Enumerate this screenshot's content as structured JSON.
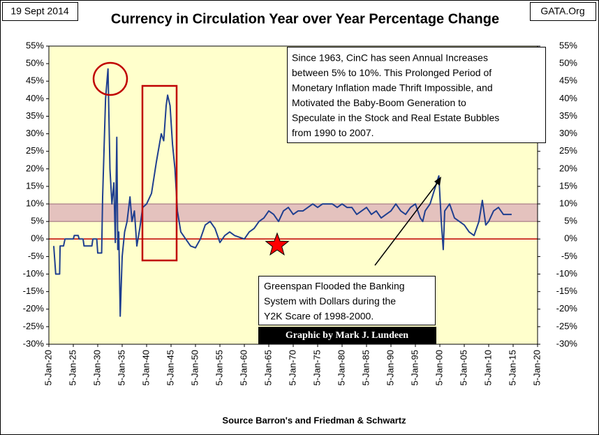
{
  "chart_data": {
    "type": "line",
    "title": "Currency in Circulation  Year over Year Percentage Change",
    "date_label": "19 Sept 2014",
    "site_label": "GATA.Org",
    "source": "Source Barron's and Friedman & Schwartz",
    "credit": "Graphic by Mark J. Lundeen",
    "annotations": [
      {
        "lines": [
          "Since 1963, CinC has seen Annual Increases",
          "between 5% to 10%.  This Prolonged Period of",
          "Monetary Inflation made Thrift Impossible, and",
          "Motivated the Baby-Boom Generation to",
          "Speculate in the Stock and Real Estate Bubbles",
          "from 1990 to 2007."
        ]
      },
      {
        "lines": [
          "Greenspan Flooded the Banking",
          "System with Dollars during the",
          "Y2K Scare of 1998-2000."
        ]
      }
    ],
    "xlim": [
      1920,
      2020
    ],
    "xticks": [
      {
        "value": 1920,
        "label": "5-Jan-20"
      },
      {
        "value": 1925,
        "label": "5-Jan-25"
      },
      {
        "value": 1930,
        "label": "5-Jan-30"
      },
      {
        "value": 1935,
        "label": "5-Jan-35"
      },
      {
        "value": 1940,
        "label": "5-Jan-40"
      },
      {
        "value": 1945,
        "label": "5-Jan-45"
      },
      {
        "value": 1950,
        "label": "5-Jan-50"
      },
      {
        "value": 1955,
        "label": "5-Jan-55"
      },
      {
        "value": 1960,
        "label": "5-Jan-60"
      },
      {
        "value": 1965,
        "label": "5-Jan-65"
      },
      {
        "value": 1970,
        "label": "5-Jan-70"
      },
      {
        "value": 1975,
        "label": "5-Jan-75"
      },
      {
        "value": 1980,
        "label": "5-Jan-80"
      },
      {
        "value": 1985,
        "label": "5-Jan-85"
      },
      {
        "value": 1990,
        "label": "5-Jan-90"
      },
      {
        "value": 1995,
        "label": "5-Jan-95"
      },
      {
        "value": 2000,
        "label": "5-Jan-00"
      },
      {
        "value": 2005,
        "label": "5-Jan-05"
      },
      {
        "value": 2010,
        "label": "5-Jan-10"
      },
      {
        "value": 2015,
        "label": "5-Jan-15"
      },
      {
        "value": 2020,
        "label": "5-Jan-20"
      }
    ],
    "ylim": [
      -30,
      55
    ],
    "yticks": [
      {
        "value": 55,
        "label": "55%"
      },
      {
        "value": 50,
        "label": "50%"
      },
      {
        "value": 45,
        "label": "45%"
      },
      {
        "value": 40,
        "label": "40%"
      },
      {
        "value": 35,
        "label": "35%"
      },
      {
        "value": 30,
        "label": "30%"
      },
      {
        "value": 25,
        "label": "25%"
      },
      {
        "value": 20,
        "label": "20%"
      },
      {
        "value": 15,
        "label": "15%"
      },
      {
        "value": 10,
        "label": "10%"
      },
      {
        "value": 5,
        "label": "5%"
      },
      {
        "value": 0,
        "label": "0%"
      },
      {
        "value": -5,
        "label": "-5%"
      },
      {
        "value": -10,
        "label": "-10%"
      },
      {
        "value": -15,
        "label": "-15%"
      },
      {
        "value": -20,
        "label": "-20%"
      },
      {
        "value": -25,
        "label": "-25%"
      },
      {
        "value": -30,
        "label": "-30%"
      }
    ],
    "y2lim": [
      -30,
      55
    ],
    "y2ticks": [
      {
        "value": 55,
        "label": "55%"
      },
      {
        "value": 50,
        "label": "50%"
      },
      {
        "value": 45,
        "label": "45%"
      },
      {
        "value": 40,
        "label": "40%"
      },
      {
        "value": 35,
        "label": "35%"
      },
      {
        "value": 30,
        "label": "30%"
      },
      {
        "value": 25,
        "label": "25%"
      },
      {
        "value": 20,
        "label": "20%"
      },
      {
        "value": 15,
        "label": "15%"
      },
      {
        "value": 10,
        "label": "10%"
      },
      {
        "value": 5,
        "label": "5%"
      },
      {
        "value": 0,
        "label": "0%"
      },
      {
        "value": -5,
        "label": "-5%"
      },
      {
        "value": -10,
        "label": "-10%"
      },
      {
        "value": -15,
        "label": "-15%"
      },
      {
        "value": -20,
        "label": "-20%"
      },
      {
        "value": -25,
        "label": "-25%"
      },
      {
        "value": -30,
        "label": "-30%"
      }
    ],
    "band": [
      5,
      10
    ],
    "band_color": "#d9a8b8",
    "reference_line": 0,
    "reference_color": "#c00000",
    "background": "#ffffcc",
    "grid": false,
    "series": [
      {
        "color": "#1f3f8f",
        "x": [
          1921,
          1921.4,
          1922.2,
          1922.3,
          1923,
          1923.3,
          1925,
          1925.2,
          1926,
          1926.2,
          1927,
          1927.2,
          1928.8,
          1929,
          1929.8,
          1930,
          1930.8,
          1931,
          1931.6,
          1932.1,
          1932.5,
          1932.9,
          1933.3,
          1933.6,
          1933.9,
          1934.1,
          1934.3,
          1934.6,
          1935,
          1935.5,
          1936,
          1936.6,
          1937,
          1937.5,
          1938,
          1938.6,
          1939.2,
          1940,
          1941,
          1942,
          1943,
          1943.5,
          1944,
          1944.3,
          1944.8,
          1945.3,
          1945.8,
          1946.3,
          1947,
          1948,
          1949,
          1950,
          1951,
          1952,
          1953,
          1954,
          1955,
          1956,
          1957,
          1958,
          1959,
          1960,
          1961,
          1962,
          1963,
          1964,
          1965,
          1966,
          1967,
          1968,
          1969,
          1970,
          1971,
          1972,
          1973,
          1974,
          1975,
          1976,
          1977,
          1978,
          1979,
          1980,
          1981,
          1982,
          1983,
          1984,
          1985,
          1986,
          1987,
          1988,
          1989,
          1990,
          1991,
          1992,
          1993,
          1994,
          1995,
          1996,
          1996.5,
          1997,
          1998,
          1999.8,
          2000.3,
          2000.7,
          2001,
          2002,
          2003,
          2004,
          2005,
          2006,
          2007,
          2008,
          2008.7,
          2009.4,
          2010,
          2011,
          2012,
          2013,
          2014.7
        ],
        "values": [
          -2,
          -10,
          -10,
          -2,
          -2,
          0,
          0,
          1,
          1,
          0,
          0,
          -2,
          -2,
          0,
          0,
          -4,
          -4,
          12,
          40,
          48.5,
          20,
          10,
          16,
          -1,
          29,
          -3,
          2,
          -22,
          -5,
          2,
          5,
          12,
          5,
          8,
          -2,
          3,
          9,
          10,
          13,
          22,
          30,
          28,
          38,
          41,
          38,
          27,
          20,
          8,
          2,
          0,
          -2,
          -2.5,
          0,
          4,
          5,
          3,
          -1,
          1,
          2,
          1,
          0.5,
          0,
          2,
          3,
          5,
          6,
          8,
          7,
          5,
          8,
          9,
          7,
          8,
          8,
          9,
          10,
          9,
          10,
          10,
          10,
          9,
          10,
          9,
          9,
          7,
          8,
          9,
          7,
          8,
          6,
          7,
          8,
          10,
          8,
          7,
          9,
          10,
          6,
          5,
          8,
          10,
          18,
          5,
          -3,
          8,
          10,
          6,
          5,
          4,
          2,
          1,
          5,
          11,
          4,
          5,
          8,
          9,
          7,
          7
        ]
      }
    ]
  }
}
